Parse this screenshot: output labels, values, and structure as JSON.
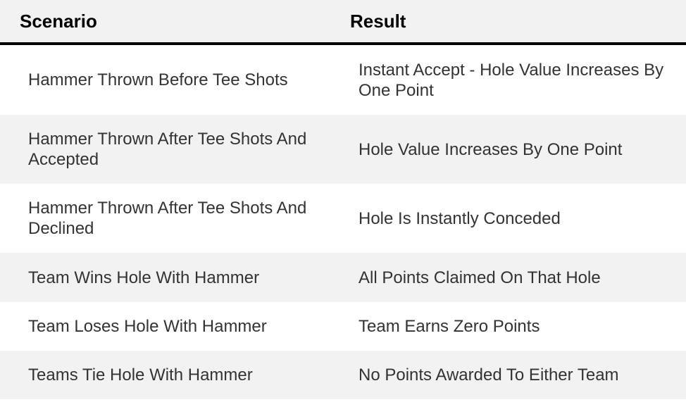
{
  "table": {
    "headers": [
      "Scenario",
      "Result"
    ],
    "rows": [
      [
        "Hammer Thrown Before Tee Shots",
        "Instant Accept - Hole Value Increases By One Point"
      ],
      [
        "Hammer Thrown After Tee Shots And Accepted",
        "Hole Value Increases By One Point"
      ],
      [
        "Hammer Thrown After Tee Shots And Declined",
        "Hole Is Instantly Conceded"
      ],
      [
        "Team Wins Hole With Hammer",
        "All Points Claimed On That Hole"
      ],
      [
        "Team Loses Hole With Hammer",
        "Team Earns Zero Points"
      ],
      [
        "Teams Tie Hole With Hammer",
        "No Points Awarded To Either Team"
      ]
    ]
  }
}
